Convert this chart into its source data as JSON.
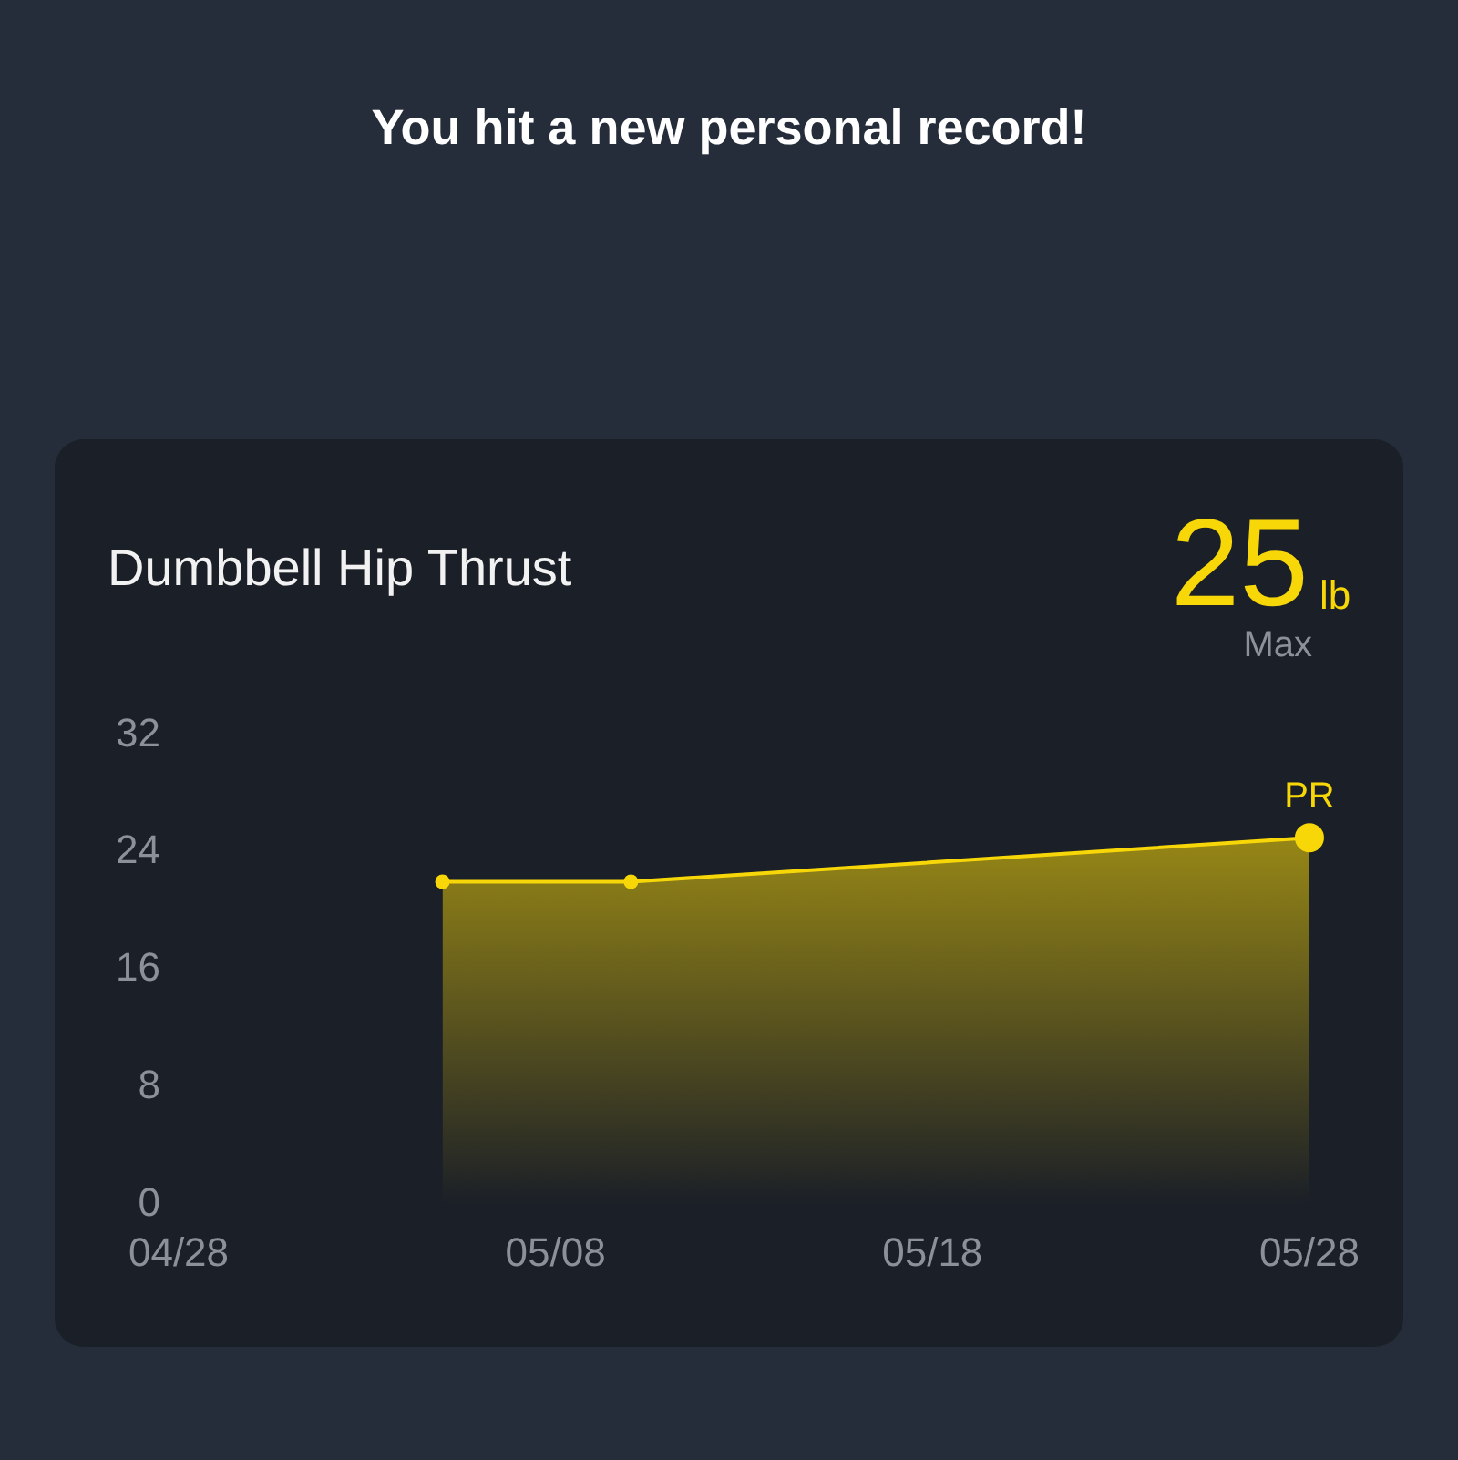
{
  "chart_data": {
    "type": "area",
    "title": "Dumbbell Hip Thrust",
    "x": [
      "--05-05",
      "--05-10",
      "--05-28"
    ],
    "series": [
      {
        "color": "#f7d708",
        "values": [
          22,
          22,
          25
        ]
      }
    ],
    "xlim": [
      "--04-28",
      "--05-28"
    ],
    "xticks": [
      {
        "value": "--04-28",
        "label": "04/28"
      },
      {
        "value": "--05-08",
        "label": "05/08"
      },
      {
        "value": "--05-18",
        "label": "05/18"
      },
      {
        "value": "--05-28",
        "label": "05/28"
      }
    ],
    "ylim": [
      0,
      32
    ],
    "yticks": [
      0,
      8,
      16,
      24,
      32
    ],
    "marker": "circle",
    "annotations": [
      "You hit a new personal record!",
      {
        "text": "PR",
        "x": "--05-28",
        "y": 25
      },
      "25",
      "lb",
      "Max"
    ]
  }
}
